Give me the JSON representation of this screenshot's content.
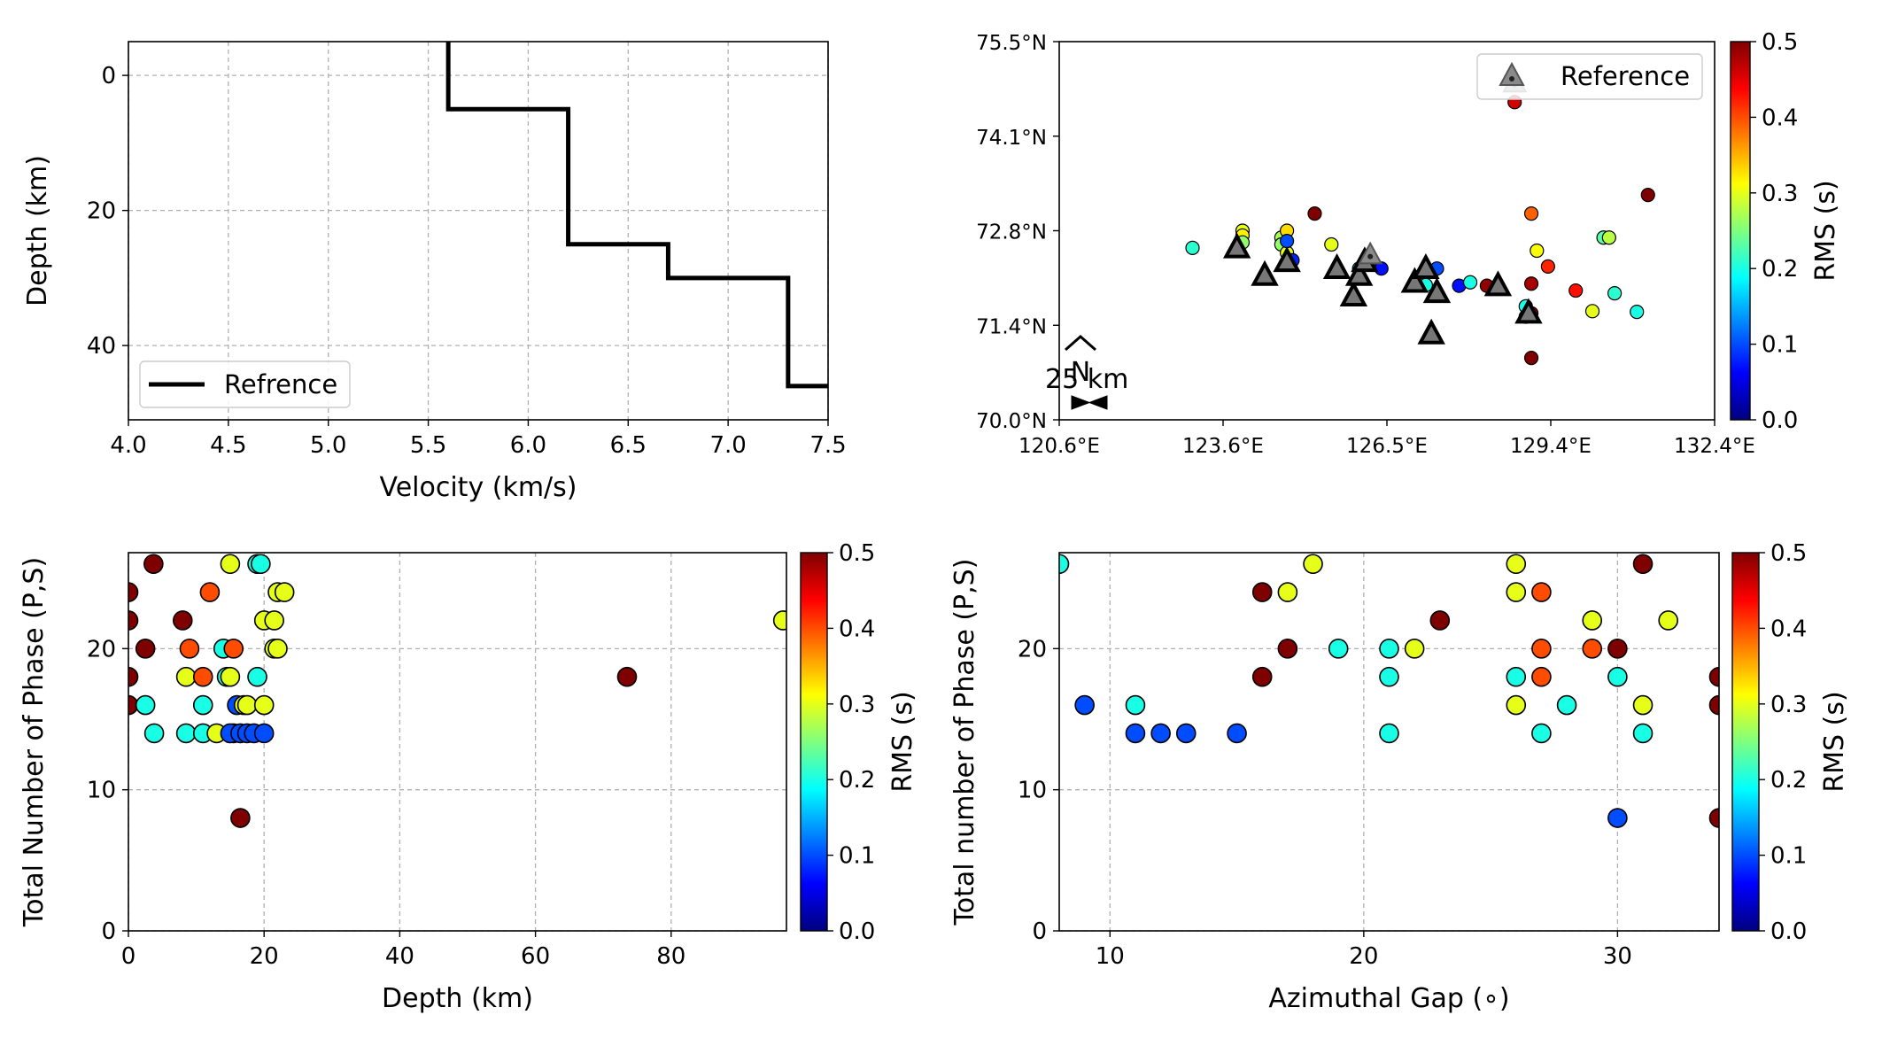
{
  "colormap": {
    "name": "jet",
    "stops": [
      "#00007f",
      "#0000ff",
      "#007fff",
      "#00ffff",
      "#7fff7f",
      "#ffff00",
      "#ff7f00",
      "#ff0000",
      "#7f0000"
    ]
  },
  "chart_data": [
    {
      "type": "line",
      "id": "velocity_profile",
      "xlabel": "Velocity (km/s)",
      "ylabel": "Depth (km)",
      "xlim": [
        4.0,
        7.5
      ],
      "ylim": [
        51,
        -5
      ],
      "y_inverted": true,
      "xticks": [
        "4.0",
        "4.5",
        "5.0",
        "5.5",
        "6.0",
        "6.5",
        "7.0",
        "7.5"
      ],
      "yticks": [
        "0",
        "20",
        "40"
      ],
      "grid": true,
      "legend_position": "lower-left",
      "series": [
        {
          "name": "Refrence",
          "style": "step",
          "color": "#000000",
          "x": [
            5.6,
            5.6,
            6.2,
            6.2,
            6.7,
            6.7,
            7.3,
            7.3,
            7.5
          ],
          "y": [
            -5,
            5,
            5,
            25,
            25,
            30,
            30,
            46,
            46
          ]
        }
      ]
    },
    {
      "type": "scatter",
      "id": "epicenter_map",
      "xlim": [
        120.6,
        132.4
      ],
      "ylim": [
        70.0,
        75.5
      ],
      "xticks": [
        "120.6°E",
        "123.6°E",
        "126.5°E",
        "129.4°E",
        "132.4°E"
      ],
      "yticks": [
        "70.0°N",
        "71.4°N",
        "72.8°N",
        "74.1°N",
        "75.5°N"
      ],
      "colorbar": {
        "label": "RMS (s)",
        "range": [
          0.0,
          0.5
        ],
        "ticks": [
          "0.0",
          "0.1",
          "0.2",
          "0.3",
          "0.4",
          "0.5"
        ]
      },
      "legend": {
        "label": "Reference",
        "position": "upper-right"
      },
      "scale_bar_label": "25 km",
      "north_arrow_label": "N",
      "events": [
        {
          "lon": 123.0,
          "lat": 72.5,
          "rms": 0.21
        },
        {
          "lon": 123.9,
          "lat": 72.75,
          "rms": 0.3
        },
        {
          "lon": 123.9,
          "lat": 72.68,
          "rms": 0.32
        },
        {
          "lon": 123.9,
          "lat": 72.58,
          "rms": 0.26
        },
        {
          "lon": 124.6,
          "lat": 72.65,
          "rms": 0.27
        },
        {
          "lon": 124.6,
          "lat": 72.55,
          "rms": 0.26
        },
        {
          "lon": 124.7,
          "lat": 72.43,
          "rms": 0.3
        },
        {
          "lon": 124.7,
          "lat": 72.75,
          "rms": 0.33
        },
        {
          "lon": 124.7,
          "lat": 72.6,
          "rms": 0.1
        },
        {
          "lon": 124.8,
          "lat": 72.32,
          "rms": 0.08
        },
        {
          "lon": 125.2,
          "lat": 73.0,
          "rms": 0.5
        },
        {
          "lon": 125.5,
          "lat": 72.55,
          "rms": 0.3
        },
        {
          "lon": 126.0,
          "lat": 72.2,
          "rms": 0.17
        },
        {
          "lon": 126.2,
          "lat": 72.3,
          "rms": 0.08
        },
        {
          "lon": 126.4,
          "lat": 72.2,
          "rms": 0.07
        },
        {
          "lon": 127.2,
          "lat": 71.96,
          "rms": 0.2
        },
        {
          "lon": 127.4,
          "lat": 72.2,
          "rms": 0.1
        },
        {
          "lon": 127.8,
          "lat": 71.95,
          "rms": 0.07
        },
        {
          "lon": 128.0,
          "lat": 72.0,
          "rms": 0.2
        },
        {
          "lon": 128.3,
          "lat": 71.95,
          "rms": 0.49
        },
        {
          "lon": 129.1,
          "lat": 73.0,
          "rms": 0.39
        },
        {
          "lon": 128.8,
          "lat": 74.62,
          "rms": 0.46
        },
        {
          "lon": 129.1,
          "lat": 71.98,
          "rms": 0.48
        },
        {
          "lon": 129.1,
          "lat": 71.55,
          "rms": 0.5
        },
        {
          "lon": 129.0,
          "lat": 71.65,
          "rms": 0.2
        },
        {
          "lon": 129.0,
          "lat": 71.5,
          "rms": 0.4
        },
        {
          "lon": 129.2,
          "lat": 72.46,
          "rms": 0.31
        },
        {
          "lon": 129.1,
          "lat": 70.9,
          "rms": 0.5
        },
        {
          "lon": 129.4,
          "lat": 72.23,
          "rms": 0.42
        },
        {
          "lon": 129.9,
          "lat": 71.88,
          "rms": 0.43
        },
        {
          "lon": 130.2,
          "lat": 71.58,
          "rms": 0.3
        },
        {
          "lon": 130.4,
          "lat": 72.65,
          "rms": 0.23
        },
        {
          "lon": 130.5,
          "lat": 72.65,
          "rms": 0.28
        },
        {
          "lon": 130.6,
          "lat": 71.84,
          "rms": 0.21
        },
        {
          "lon": 131.0,
          "lat": 71.57,
          "rms": 0.2
        },
        {
          "lon": 131.2,
          "lat": 73.27,
          "rms": 0.5
        }
      ],
      "reference_stations": [
        {
          "lon": 123.8,
          "lat": 72.5
        },
        {
          "lon": 124.3,
          "lat": 72.1
        },
        {
          "lon": 124.7,
          "lat": 72.3
        },
        {
          "lon": 125.6,
          "lat": 72.2
        },
        {
          "lon": 125.9,
          "lat": 71.8
        },
        {
          "lon": 126.0,
          "lat": 72.1
        },
        {
          "lon": 126.1,
          "lat": 72.3
        },
        {
          "lon": 127.0,
          "lat": 72.0
        },
        {
          "lon": 127.2,
          "lat": 72.2
        },
        {
          "lon": 127.3,
          "lat": 71.25
        },
        {
          "lon": 127.4,
          "lat": 71.85
        },
        {
          "lon": 128.5,
          "lat": 71.95
        },
        {
          "lon": 129.05,
          "lat": 71.55
        },
        {
          "lon": 126.2,
          "lat": 72.4,
          "reference": true
        },
        {
          "lon": 128.8,
          "lat": 74.9,
          "reference": true
        }
      ]
    },
    {
      "type": "scatter",
      "id": "phases_vs_depth",
      "xlabel": "Depth (km)",
      "ylabel": "Total Number of Phase (P,S)",
      "xlim": [
        0,
        97
      ],
      "ylim": [
        0,
        26.8
      ],
      "xticks": [
        0,
        20,
        40,
        60,
        80
      ],
      "yticks": [
        0,
        10,
        20
      ],
      "grid": true,
      "colorbar": {
        "label": "RMS (s)",
        "range": [
          0.0,
          0.5
        ],
        "ticks": [
          "0.0",
          "0.1",
          "0.2",
          "0.3",
          "0.4",
          "0.5"
        ]
      },
      "points": [
        {
          "x": 0,
          "y": 24,
          "rms": 0.5
        },
        {
          "x": 0,
          "y": 22,
          "rms": 0.5
        },
        {
          "x": 0,
          "y": 18,
          "rms": 0.5
        },
        {
          "x": 0,
          "y": 16,
          "rms": 0.5
        },
        {
          "x": 3.7,
          "y": 26,
          "rms": 0.5
        },
        {
          "x": 2.5,
          "y": 20,
          "rms": 0.5
        },
        {
          "x": 2.5,
          "y": 16,
          "rms": 0.2
        },
        {
          "x": 3.8,
          "y": 14,
          "rms": 0.2
        },
        {
          "x": 8.0,
          "y": 22,
          "rms": 0.5
        },
        {
          "x": 8.5,
          "y": 18,
          "rms": 0.3
        },
        {
          "x": 9.0,
          "y": 20,
          "rms": 0.4
        },
        {
          "x": 8.5,
          "y": 14,
          "rms": 0.2
        },
        {
          "x": 11.0,
          "y": 18,
          "rms": 0.4
        },
        {
          "x": 11.0,
          "y": 16,
          "rms": 0.2
        },
        {
          "x": 11.0,
          "y": 14,
          "rms": 0.2
        },
        {
          "x": 12.0,
          "y": 24,
          "rms": 0.4
        },
        {
          "x": 13.0,
          "y": 14,
          "rms": 0.3
        },
        {
          "x": 14.0,
          "y": 20,
          "rms": 0.2
        },
        {
          "x": 14.5,
          "y": 18,
          "rms": 0.2
        },
        {
          "x": 15.0,
          "y": 26,
          "rms": 0.3
        },
        {
          "x": 15.0,
          "y": 18,
          "rms": 0.3
        },
        {
          "x": 15.5,
          "y": 20,
          "rms": 0.4
        },
        {
          "x": 15.5,
          "y": 14,
          "rms": 0.2
        },
        {
          "x": 15.0,
          "y": 14,
          "rms": 0.1
        },
        {
          "x": 16.0,
          "y": 16,
          "rms": 0.1
        },
        {
          "x": 16.5,
          "y": 14,
          "rms": 0.1
        },
        {
          "x": 16.5,
          "y": 8,
          "rms": 0.5
        },
        {
          "x": 17.0,
          "y": 16,
          "rms": 0.3
        },
        {
          "x": 17.5,
          "y": 16,
          "rms": 0.3
        },
        {
          "x": 17.5,
          "y": 14,
          "rms": 0.1
        },
        {
          "x": 18.5,
          "y": 14,
          "rms": 0.1
        },
        {
          "x": 19.0,
          "y": 18,
          "rms": 0.2
        },
        {
          "x": 19.0,
          "y": 26,
          "rms": 0.2
        },
        {
          "x": 19.5,
          "y": 26,
          "rms": 0.2
        },
        {
          "x": 20.0,
          "y": 22,
          "rms": 0.3
        },
        {
          "x": 20.0,
          "y": 16,
          "rms": 0.3
        },
        {
          "x": 20.0,
          "y": 14,
          "rms": 0.1
        },
        {
          "x": 21.5,
          "y": 20,
          "rms": 0.3
        },
        {
          "x": 21.5,
          "y": 22,
          "rms": 0.3
        },
        {
          "x": 22.0,
          "y": 24,
          "rms": 0.3
        },
        {
          "x": 23.0,
          "y": 24,
          "rms": 0.3
        },
        {
          "x": 22.0,
          "y": 20,
          "rms": 0.3
        },
        {
          "x": 73.5,
          "y": 18,
          "rms": 0.5
        },
        {
          "x": 96.5,
          "y": 22,
          "rms": 0.3
        }
      ]
    },
    {
      "type": "scatter",
      "id": "phases_vs_gap",
      "xlabel": "Azimuthal Gap (∘)",
      "ylabel": "Total number of Phase (P,S)",
      "xlim": [
        8,
        34
      ],
      "ylim": [
        0,
        26.8
      ],
      "xticks": [
        10,
        20,
        30
      ],
      "yticks": [
        0,
        10,
        20
      ],
      "grid": true,
      "colorbar": {
        "label": "RMS (s)",
        "range": [
          0.0,
          0.5
        ],
        "ticks": [
          "0.0",
          "0.1",
          "0.2",
          "0.3",
          "0.4",
          "0.5"
        ]
      },
      "points": [
        {
          "x": 8,
          "y": 26,
          "rms": 0.2
        },
        {
          "x": 9,
          "y": 16,
          "rms": 0.1
        },
        {
          "x": 11,
          "y": 16,
          "rms": 0.2
        },
        {
          "x": 11,
          "y": 14,
          "rms": 0.1
        },
        {
          "x": 12,
          "y": 14,
          "rms": 0.1
        },
        {
          "x": 13,
          "y": 14,
          "rms": 0.1
        },
        {
          "x": 15,
          "y": 14,
          "rms": 0.1
        },
        {
          "x": 16,
          "y": 24,
          "rms": 0.5
        },
        {
          "x": 16,
          "y": 18,
          "rms": 0.5
        },
        {
          "x": 17,
          "y": 24,
          "rms": 0.3
        },
        {
          "x": 17,
          "y": 20,
          "rms": 0.5
        },
        {
          "x": 18,
          "y": 26,
          "rms": 0.3
        },
        {
          "x": 19,
          "y": 20,
          "rms": 0.2
        },
        {
          "x": 21,
          "y": 20,
          "rms": 0.2
        },
        {
          "x": 21,
          "y": 18,
          "rms": 0.2
        },
        {
          "x": 21,
          "y": 14,
          "rms": 0.2
        },
        {
          "x": 22,
          "y": 20,
          "rms": 0.3
        },
        {
          "x": 23,
          "y": 22,
          "rms": 0.5
        },
        {
          "x": 26,
          "y": 26,
          "rms": 0.3
        },
        {
          "x": 26,
          "y": 24,
          "rms": 0.3
        },
        {
          "x": 26,
          "y": 18,
          "rms": 0.2
        },
        {
          "x": 26,
          "y": 16,
          "rms": 0.3
        },
        {
          "x": 27,
          "y": 24,
          "rms": 0.4
        },
        {
          "x": 27,
          "y": 20,
          "rms": 0.4
        },
        {
          "x": 27,
          "y": 18,
          "rms": 0.4
        },
        {
          "x": 27,
          "y": 14,
          "rms": 0.2
        },
        {
          "x": 28,
          "y": 16,
          "rms": 0.2
        },
        {
          "x": 29,
          "y": 22,
          "rms": 0.3
        },
        {
          "x": 29,
          "y": 20,
          "rms": 0.4
        },
        {
          "x": 30,
          "y": 20,
          "rms": 0.5
        },
        {
          "x": 30,
          "y": 18,
          "rms": 0.2
        },
        {
          "x": 30,
          "y": 8,
          "rms": 0.1
        },
        {
          "x": 31,
          "y": 26,
          "rms": 0.5
        },
        {
          "x": 31,
          "y": 16,
          "rms": 0.3
        },
        {
          "x": 31,
          "y": 14,
          "rms": 0.2
        },
        {
          "x": 32,
          "y": 22,
          "rms": 0.3
        },
        {
          "x": 34,
          "y": 18,
          "rms": 0.5
        },
        {
          "x": 34,
          "y": 16,
          "rms": 0.5
        },
        {
          "x": 34,
          "y": 8,
          "rms": 0.5
        }
      ]
    }
  ]
}
